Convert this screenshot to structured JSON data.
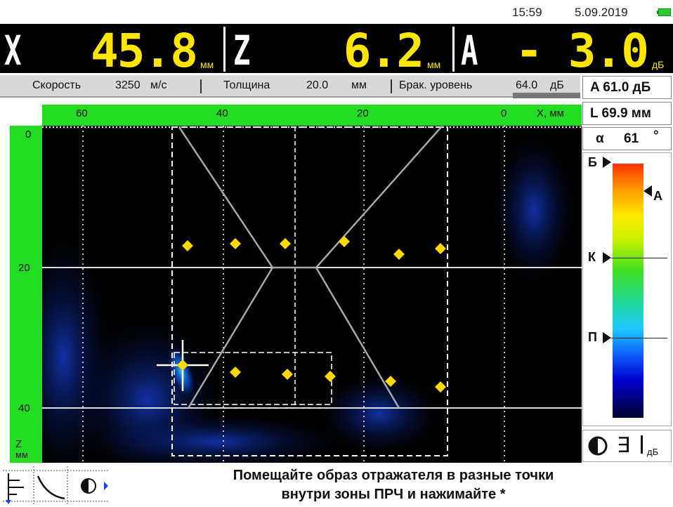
{
  "status": {
    "time": "15:59",
    "date": "5.09.2019",
    "battery": "battery-icon"
  },
  "readouts": {
    "x": {
      "letter": "X",
      "value": "45.8",
      "unit": "мм"
    },
    "z": {
      "letter": "Z",
      "value": "6.2",
      "unit": "мм"
    },
    "a": {
      "letter": "A",
      "value": "- 3.0",
      "unit": "дБ"
    }
  },
  "info": {
    "speed_label": "Скорость",
    "speed_value": "3250",
    "speed_unit": "м/с",
    "thickness_label": "Толщина",
    "thickness_value": "20.0",
    "thickness_unit": "мм",
    "reject_label": "Брак. уровень",
    "reject_value": "64.0",
    "reject_unit": "дБ"
  },
  "right_panel": {
    "amplitude": "A 61.0 дБ",
    "length": "L 69.9 мм",
    "angle_symbol": "α",
    "angle_value": "61",
    "angle_unit": "°",
    "colorbar": {
      "top_label": "Б",
      "a_label": "А",
      "k_label": "К",
      "p_label": "П"
    },
    "mode": {
      "icon": "contrast-icon",
      "text": "∃",
      "unit": "дБ"
    }
  },
  "plot": {
    "x_ticks": [
      "60",
      "40",
      "20",
      "0"
    ],
    "x_axis_label": "X, мм",
    "z_ticks": [
      "0",
      "20",
      "40"
    ],
    "z_axis_label": "Z",
    "z_axis_unit": "мм"
  },
  "hint": {
    "line1": "Помещайте образ отражателя в разные точки",
    "line2": "внутри зоны ПРЧ и нажимайте *"
  },
  "colors": {
    "accent": "#ffe600",
    "ruler": "#22dd22",
    "marker": "#ffd800"
  }
}
